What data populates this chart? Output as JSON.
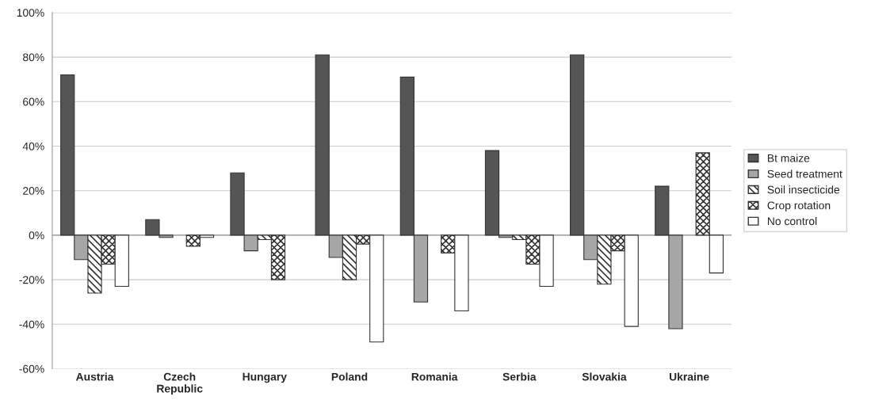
{
  "chart_data": {
    "type": "bar",
    "categories": [
      "Austria",
      "Czech\nRepublic",
      "Hungary",
      "Poland",
      "Romania",
      "Serbia",
      "Slovakia",
      "Ukraine"
    ],
    "series": [
      {
        "name": "Bt maize",
        "color": "#555555",
        "values": [
          72,
          7,
          28,
          81,
          71,
          38,
          81,
          22
        ]
      },
      {
        "name": "Seed treatment",
        "color": "#a6a6a6",
        "values": [
          -11,
          -1,
          -7,
          -10,
          -30,
          -1,
          -11,
          -42
        ]
      },
      {
        "name": "Soil insecticide",
        "color": "#333333",
        "values": [
          -26,
          null,
          -2,
          -20,
          null,
          -2,
          -22,
          null
        ]
      },
      {
        "name": "Crop rotation",
        "color": "#333333",
        "values": [
          -13,
          -5,
          -20,
          -4,
          -8,
          -13,
          -7,
          37
        ]
      },
      {
        "name": "No control",
        "color": "#ffffff",
        "values": [
          -23,
          -1,
          null,
          -48,
          -34,
          -23,
          -41,
          -17
        ]
      }
    ],
    "ylim": [
      -60,
      100
    ],
    "yticks": [
      {
        "value": -60,
        "label": "-60%"
      },
      {
        "value": -40,
        "label": "-40%"
      },
      {
        "value": -20,
        "label": "-20%"
      },
      {
        "value": 0,
        "label": "0%"
      },
      {
        "value": 20,
        "label": "20%"
      },
      {
        "value": 40,
        "label": "40%"
      },
      {
        "value": 60,
        "label": "60%"
      },
      {
        "value": 80,
        "label": "80%"
      },
      {
        "value": 100,
        "label": "100%"
      }
    ],
    "grid": "y",
    "legend": "right"
  }
}
